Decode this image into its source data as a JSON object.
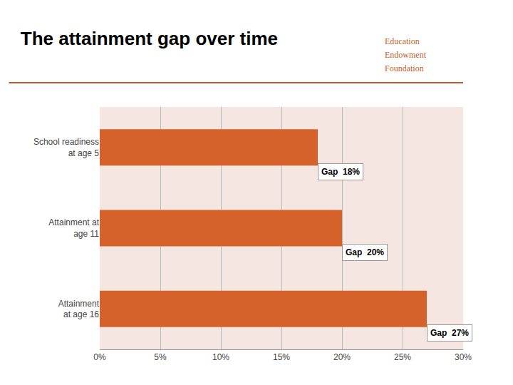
{
  "chart_data": {
    "type": "bar",
    "orientation": "horizontal",
    "title": "The attainment gap over time",
    "categories": [
      "School readiness\nat age 5",
      "Attainment at\nage 11",
      "Attainment\nat age 16"
    ],
    "values": [
      18,
      20,
      27
    ],
    "data_labels": true,
    "value_labels": [
      "Gap  18%",
      "Gap  20%",
      "Gap  27%"
    ],
    "color": "#D4622A",
    "xlim": [
      0,
      30
    ],
    "xticks": [
      {
        "value": 0,
        "label": "0%"
      },
      {
        "value": 5,
        "label": "5%"
      },
      {
        "value": 10,
        "label": "10%"
      },
      {
        "value": 15,
        "label": "15%"
      },
      {
        "value": 20,
        "label": "20%"
      },
      {
        "value": 25,
        "label": "25%"
      },
      {
        "value": 30,
        "label": "30%"
      }
    ],
    "grid": true,
    "annotations": [
      "Education",
      "Endowment",
      "Foundation"
    ]
  }
}
